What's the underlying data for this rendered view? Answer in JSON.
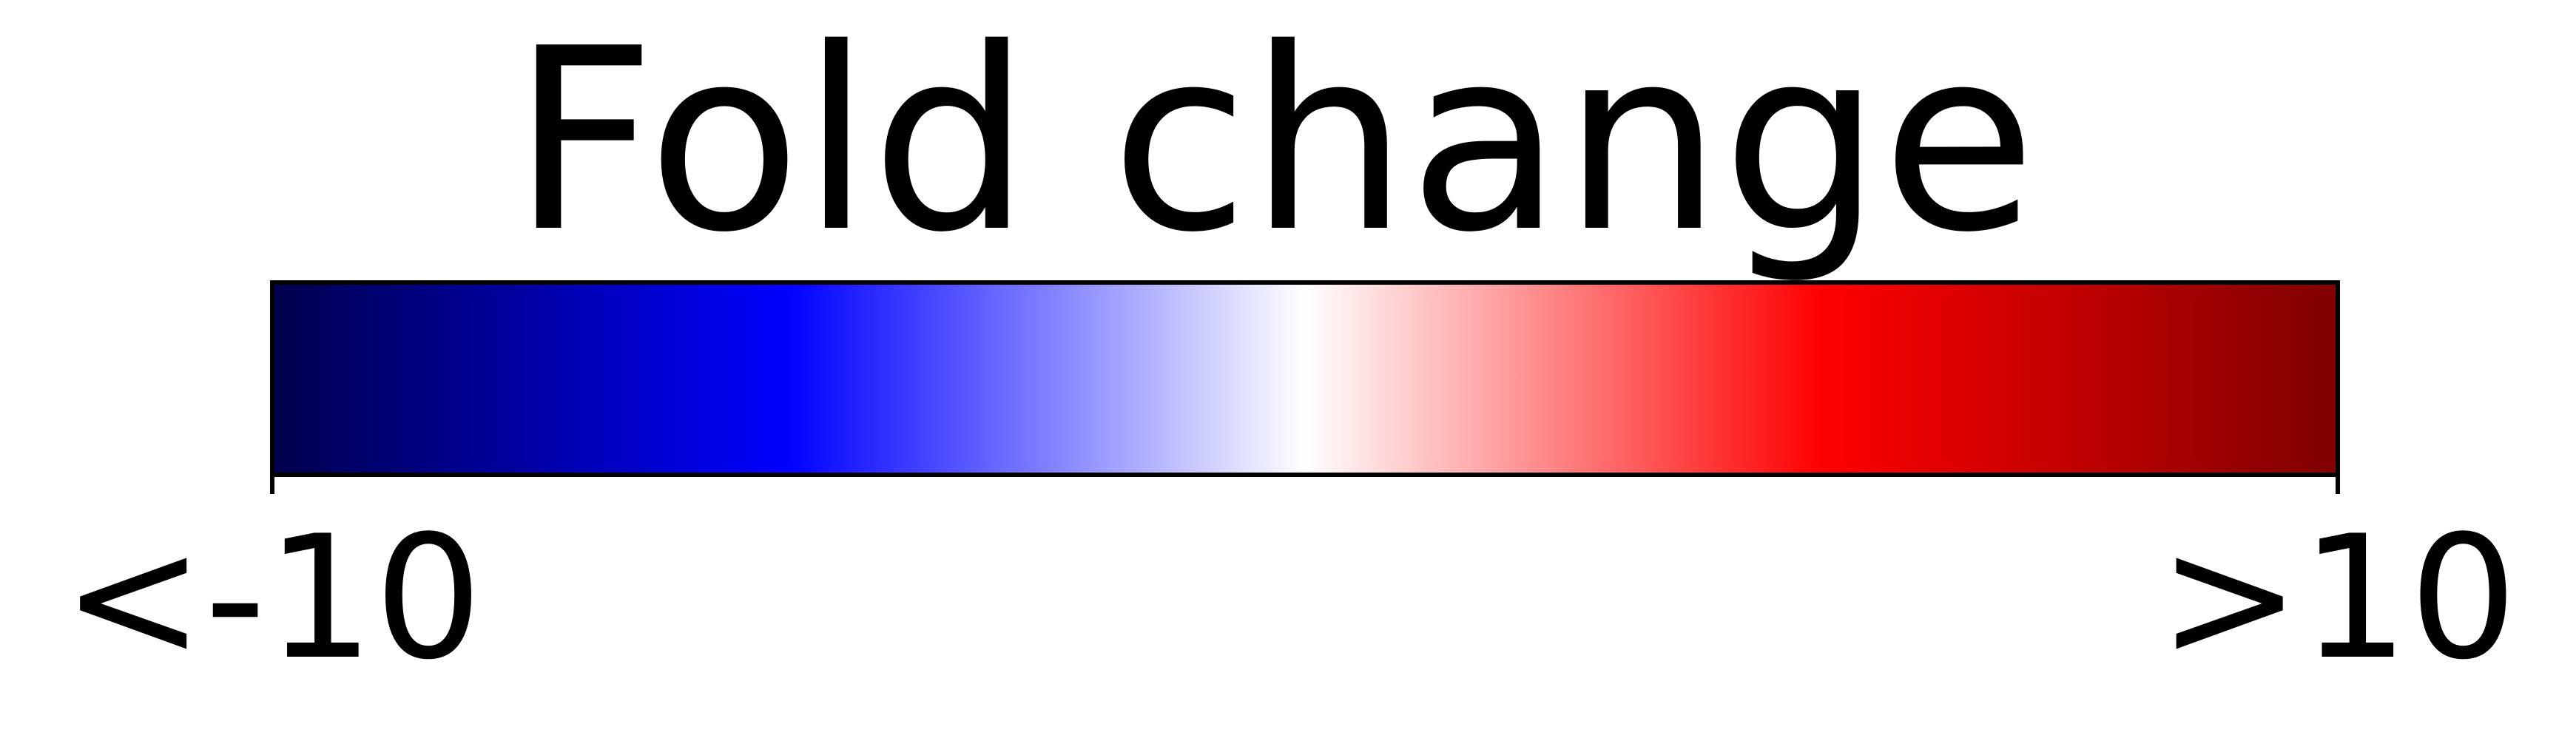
{
  "chart_data": {
    "type": "heatmap",
    "title": "Fold change",
    "colormap": "seismic",
    "colormap_stops": [
      "#00004c",
      "#0000ff",
      "#ffffff",
      "#ff0000",
      "#7f0000"
    ],
    "vmin": -10,
    "vmax": 10,
    "ticks": [
      {
        "value": -10,
        "label": "<-10"
      },
      {
        "value": 10,
        "label": ">10"
      }
    ],
    "orientation": "horizontal"
  }
}
